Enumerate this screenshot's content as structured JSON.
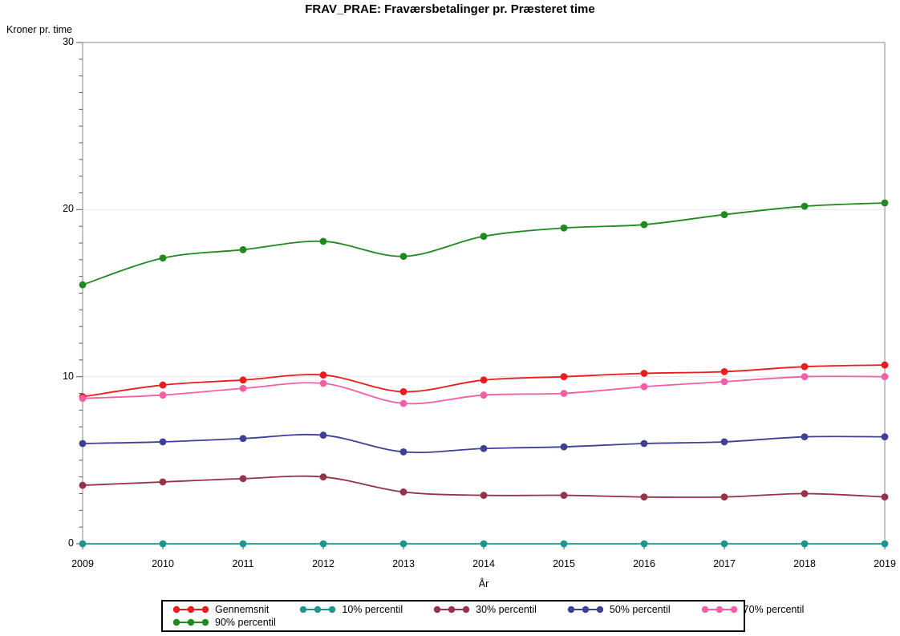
{
  "chart_data": {
    "type": "line",
    "title": "FRAV_PRAE: Fraværsbetalinger pr. Præsteret time",
    "ylabel": "Kroner pr. time",
    "xlabel": "År",
    "x": [
      2009,
      2010,
      2011,
      2012,
      2013,
      2014,
      2015,
      2016,
      2017,
      2018,
      2019
    ],
    "ylim": [
      0,
      30
    ],
    "yticks": [
      0,
      10,
      20,
      30
    ],
    "minor_tick_step": 1,
    "grid": "horizontal-major-gridlines",
    "legend_position": "bottom",
    "marker": "filled-circle",
    "line_style": "smooth",
    "series": [
      {
        "name": "Gennemsnit",
        "color": "#ed1b1e",
        "values": [
          8.8,
          9.5,
          9.8,
          10.1,
          9.1,
          9.8,
          10.0,
          10.2,
          10.3,
          10.6,
          10.7
        ]
      },
      {
        "name": "10% percentil",
        "color": "#1f958f",
        "values": [
          0,
          0,
          0,
          0,
          0,
          0,
          0,
          0,
          0,
          0,
          0
        ]
      },
      {
        "name": "30% percentil",
        "color": "#97324a",
        "values": [
          3.5,
          3.7,
          3.9,
          4.0,
          3.1,
          2.9,
          2.9,
          2.8,
          2.8,
          3.0,
          2.8
        ]
      },
      {
        "name": "50% percentil",
        "color": "#3e4095",
        "values": [
          6.0,
          6.1,
          6.3,
          6.5,
          5.5,
          5.7,
          5.8,
          6.0,
          6.1,
          6.4,
          6.4
        ]
      },
      {
        "name": "70% percentil",
        "color": "#f45ea4",
        "values": [
          8.7,
          8.9,
          9.3,
          9.6,
          8.4,
          8.9,
          9.0,
          9.4,
          9.7,
          10.0,
          10.0
        ]
      },
      {
        "name": "90% percentil",
        "color": "#1f8a1e",
        "values": [
          15.5,
          17.1,
          17.6,
          18.1,
          17.2,
          18.4,
          18.9,
          19.1,
          19.7,
          20.2,
          20.4
        ]
      }
    ],
    "colors": {
      "frame": "#878787",
      "gridline": "#e6e6e6",
      "tick": "#5a5a5a",
      "text": "#000000",
      "background": "#ffffff"
    }
  }
}
